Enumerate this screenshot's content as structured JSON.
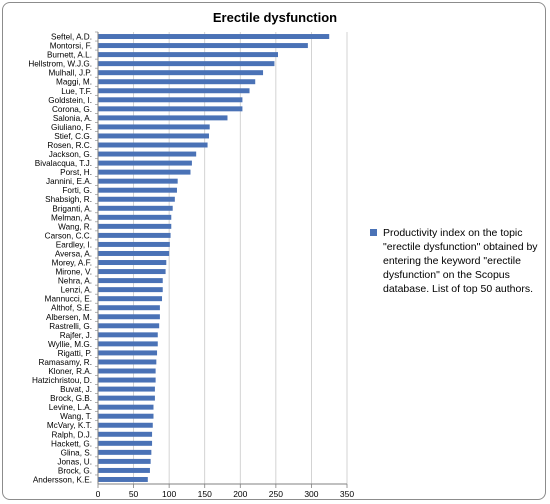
{
  "chart_data": {
    "type": "bar",
    "orientation": "horizontal",
    "title": "Erectile dysfunction",
    "categories": [
      "Seftel, A.D.",
      "Montorsi, F.",
      "Burnett, A.L.",
      "Hellstrom, W.J.G.",
      "Mulhall, J.P.",
      "Maggi, M.",
      "Lue, T.F.",
      "Goldstein, I.",
      "Corona, G.",
      "Salonia, A.",
      "Giuliano, F.",
      "Stief, C.G.",
      "Rosen, R.C.",
      "Jackson, G.",
      "Bivalacqua, T.J.",
      "Porst, H.",
      "Jannini, E.A.",
      "Forti, G.",
      "Shabsigh, R.",
      "Briganti, A.",
      "Melman, A.",
      "Wang, R.",
      "Carson, C.C.",
      "Eardley, I.",
      "Aversa, A.",
      "Morey, A.F.",
      "Mirone, V.",
      "Nehra, A.",
      "Lenzi, A.",
      "Mannucci, E.",
      "Althof, S.E.",
      "Albersen, M.",
      "Rastrelli, G.",
      "Rajfer, J.",
      "Wyllie, M.G.",
      "Rigatti, P.",
      "Ramasamy, R.",
      "Kloner, R.A.",
      "Hatzichristou, D.",
      "Buvat, J.",
      "Brock, G.B.",
      "Levine, L.A.",
      "Wang, T.",
      "McVary, K.T.",
      "Ralph, D.J.",
      "Hackett, G.",
      "Glina, S.",
      "Jonas, U.",
      "Brock, G.",
      "Andersson, K.E."
    ],
    "series": [
      {
        "name": "Productivity index on the topic \"erectile dysfunction\" obtained by entering the keyword \"erectile dysfunction\" on the Scopus database. List of top 50 authors.",
        "color": "#4a72b6",
        "values": [
          325,
          295,
          253,
          248,
          232,
          221,
          213,
          203,
          203,
          182,
          157,
          156,
          154,
          138,
          132,
          130,
          112,
          111,
          108,
          105,
          103,
          103,
          102,
          101,
          100,
          96,
          95,
          91,
          91,
          90,
          87,
          87,
          86,
          84,
          84,
          83,
          82,
          81,
          81,
          80,
          80,
          78,
          78,
          77,
          76,
          76,
          75,
          74,
          73,
          70
        ]
      }
    ],
    "xlim": [
      0,
      350
    ],
    "xticks": [
      "0",
      "50",
      "100",
      "150",
      "200",
      "250",
      "300",
      "350"
    ],
    "xlabel": "",
    "ylabel": "",
    "grid": "vertical",
    "legend_position": "right"
  }
}
